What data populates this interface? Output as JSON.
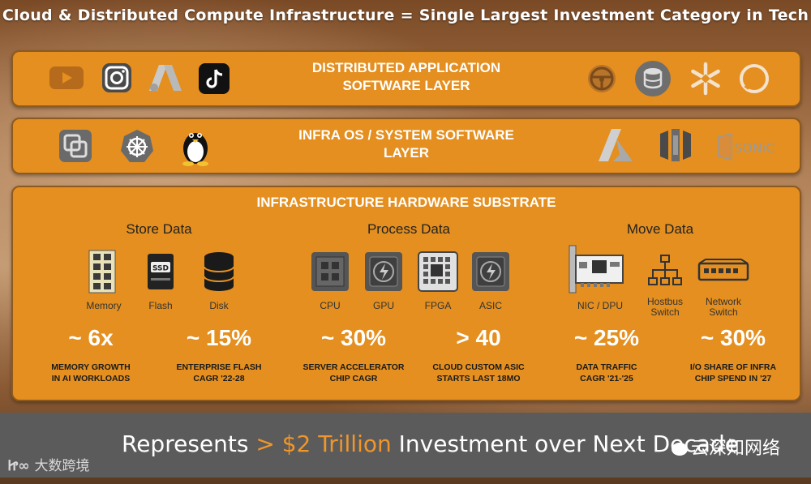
{
  "header": {
    "title": "Cloud & Distributed Compute Infrastructure  =  Single Largest Investment Category in Tech"
  },
  "layers": {
    "app": {
      "title_line1": "DISTRIBUTED APPLICATION",
      "title_line2": "SOFTWARE LAYER",
      "icons": [
        "youtube-icon",
        "instagram-icon",
        "google-ads-icon",
        "tiktok-icon",
        "steering-wheel-icon",
        "oracle-database-icon",
        "snowflake-icon",
        "alexa-icon"
      ]
    },
    "os": {
      "title_line1": "INFRA OS / SYSTEM SOFTWARE",
      "title_line2": "LAYER",
      "icons": [
        "vmware-icon",
        "kubernetes-icon",
        "linux-tux-icon",
        "azure-icon",
        "aws-icon",
        "sonic-icon"
      ],
      "sonic_label": "SONiC"
    },
    "hardware": {
      "title": "INFRASTRUCTURE HARDWARE SUBSTRATE",
      "sections": {
        "store": "Store Data",
        "process": "Process Data",
        "move": "Move Data"
      },
      "items": {
        "memory": "Memory",
        "flash": "Flash",
        "disk": "Disk",
        "cpu": "CPU",
        "gpu": "GPU",
        "fpga": "FPGA",
        "asic": "ASIC",
        "nic": "NIC / DPU",
        "hostbus_l1": "Hostbus",
        "hostbus_l2": "Switch",
        "network_l1": "Network",
        "network_l2": "Switch"
      },
      "ssd_label": "SSD",
      "stats": [
        {
          "value": "~ 6x",
          "desc1": "MEMORY GROWTH",
          "desc2": "IN AI WORKLOADS"
        },
        {
          "value": "~ 15%",
          "desc1": "ENTERPRISE FLASH",
          "desc2": "CAGR '22-28"
        },
        {
          "value": "~ 30%",
          "desc1": "SERVER ACCELERATOR",
          "desc2": "CHIP CAGR"
        },
        {
          "value": "> 40",
          "desc1": "CLOUD CUSTOM ASIC",
          "desc2": "STARTS LAST 18MO"
        },
        {
          "value": "~ 25%",
          "desc1": "DATA TRAFFIC",
          "desc2": "CAGR '21-'25"
        },
        {
          "value": "~ 30%",
          "desc1": "I/O SHARE OF INFRA",
          "desc2": "CHIP SPEND IN '27"
        }
      ]
    }
  },
  "footer": {
    "prefix": "Represents ",
    "highlight": "> $2 Trillion",
    "suffix": " Investment over Next Decade"
  },
  "watermarks": {
    "left": "大数跨境",
    "right": "云深知网络"
  },
  "colors": {
    "layer_orange": "#e48f1f",
    "accent": "#f0962a",
    "footer_bg": "#5b5b5b"
  }
}
